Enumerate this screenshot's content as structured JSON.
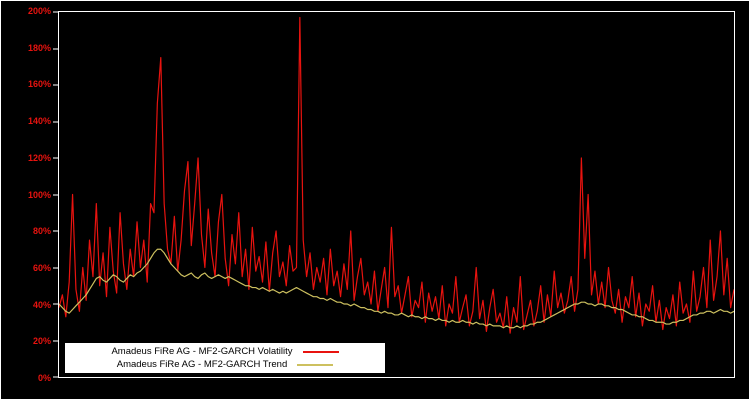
{
  "chart_data": {
    "type": "line",
    "title": "",
    "xlabel": "",
    "ylabel": "",
    "ylim": [
      0,
      200
    ],
    "background_color": "#000000",
    "frame_color": "#ffffff",
    "tick_label_color": "#e8130f",
    "grid": false,
    "legend_position": "bottom-left",
    "yticks": [
      "0%",
      "20%",
      "40%",
      "60%",
      "80%",
      "100%",
      "120%",
      "140%",
      "160%",
      "180%",
      "200%"
    ],
    "ytick_values": [
      0,
      20,
      40,
      60,
      80,
      100,
      120,
      140,
      160,
      180,
      200
    ],
    "series": [
      {
        "name": "Amadeus FiRe AG - MF2-GARCH Volatility",
        "color": "#e8130f",
        "values": [
          38,
          45,
          33,
          52,
          100,
          48,
          36,
          60,
          42,
          75,
          55,
          95,
          50,
          68,
          44,
          82,
          58,
          46,
          90,
          62,
          48,
          70,
          55,
          85,
          60,
          75,
          52,
          95,
          90,
          150,
          175,
          95,
          70,
          62,
          88,
          58,
          75,
          102,
          118,
          72,
          95,
          120,
          78,
          60,
          92,
          68,
          55,
          85,
          100,
          65,
          50,
          78,
          62,
          90,
          55,
          70,
          48,
          82,
          58,
          66,
          52,
          74,
          47,
          68,
          80,
          55,
          63,
          50,
          72,
          58,
          60,
          197,
          75,
          55,
          68,
          48,
          60,
          52,
          65,
          45,
          70,
          50,
          58,
          44,
          62,
          48,
          80,
          42,
          55,
          65,
          45,
          52,
          40,
          58,
          36,
          48,
          60,
          38,
          82,
          44,
          50,
          35,
          45,
          55,
          33,
          42,
          38,
          52,
          30,
          46,
          36,
          44,
          32,
          50,
          28,
          40,
          35,
          55,
          30,
          38,
          45,
          28,
          36,
          60,
          32,
          42,
          25,
          38,
          48,
          30,
          35,
          27,
          44,
          24,
          38,
          30,
          55,
          26,
          34,
          42,
          28,
          36,
          50,
          30,
          45,
          33,
          58,
          38,
          46,
          35,
          42,
          55,
          36,
          48,
          120,
          65,
          100,
          45,
          58,
          40,
          52,
          38,
          60,
          42,
          35,
          48,
          30,
          44,
          38,
          55,
          33,
          46,
          28,
          40,
          36,
          50,
          30,
          42,
          26,
          38,
          32,
          45,
          28,
          52,
          35,
          40,
          30,
          58,
          36,
          44,
          60,
          38,
          75,
          42,
          55,
          80,
          45,
          65,
          38,
          48
        ]
      },
      {
        "name": "Amadeus FiRe AG - MF2-GARCH Trend",
        "color": "#cdc05f",
        "values": [
          40,
          38,
          36,
          35,
          37,
          39,
          41,
          43,
          45,
          48,
          51,
          54,
          55,
          53,
          52,
          54,
          56,
          55,
          53,
          52,
          54,
          56,
          55,
          57,
          58,
          60,
          62,
          65,
          68,
          70,
          70,
          68,
          65,
          62,
          60,
          58,
          56,
          55,
          56,
          57,
          55,
          54,
          56,
          57,
          55,
          54,
          55,
          56,
          55,
          54,
          55,
          54,
          53,
          52,
          51,
          50,
          50,
          49,
          49,
          48,
          49,
          48,
          47,
          48,
          47,
          46,
          47,
          46,
          47,
          48,
          49,
          48,
          47,
          46,
          45,
          44,
          44,
          43,
          43,
          42,
          43,
          42,
          41,
          41,
          40,
          40,
          39,
          40,
          39,
          38,
          38,
          37,
          37,
          36,
          36,
          35,
          36,
          35,
          35,
          34,
          34,
          35,
          34,
          33,
          34,
          33,
          33,
          32,
          33,
          32,
          32,
          31,
          32,
          31,
          31,
          30,
          31,
          30,
          30,
          31,
          30,
          30,
          29,
          30,
          29,
          29,
          28,
          29,
          28,
          28,
          28,
          27,
          28,
          27,
          27,
          28,
          27,
          28,
          28,
          29,
          29,
          30,
          30,
          31,
          32,
          33,
          34,
          35,
          36,
          37,
          38,
          39,
          40,
          40,
          41,
          41,
          40,
          40,
          39,
          40,
          40,
          39,
          39,
          38,
          38,
          37,
          37,
          36,
          35,
          34,
          34,
          33,
          33,
          32,
          31,
          31,
          30,
          30,
          30,
          29,
          29,
          30,
          30,
          31,
          31,
          32,
          33,
          34,
          34,
          35,
          35,
          36,
          36,
          35,
          36,
          37,
          36,
          36,
          35,
          36
        ]
      }
    ]
  }
}
